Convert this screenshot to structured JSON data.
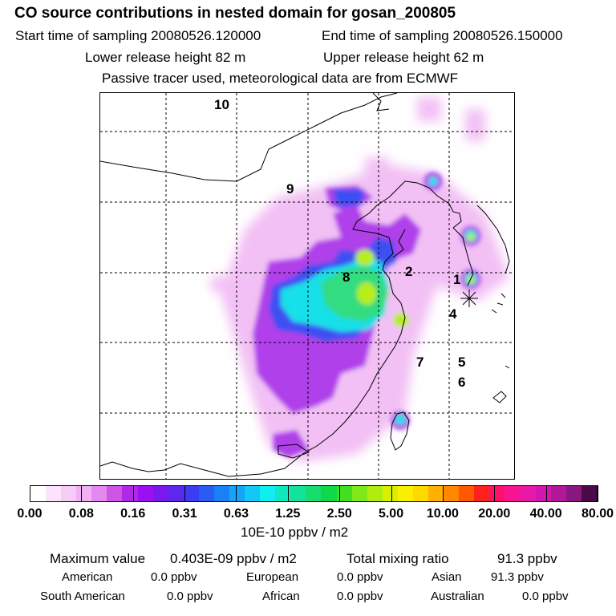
{
  "header": {
    "title": "CO  source contributions in nested domain for gosan_200805",
    "start_time": "Start time of sampling 20080526.120000",
    "end_time": "End time of sampling 20080526.150000",
    "lower_height": "Lower release height   82 m",
    "upper_height": "Upper release height   62 m",
    "note": "Passive tracer used, meteorological data are from ECMWF"
  },
  "map": {
    "region_labels": [
      "10",
      "9",
      "8",
      "2",
      "1",
      "4",
      "7",
      "5",
      "6"
    ],
    "receptor_marker": "asterisk"
  },
  "colorbar": {
    "colors": [
      "#ffffff",
      "#fbe4fb",
      "#f7cbf7",
      "#f0b0f2",
      "#e48aee",
      "#cc55e8",
      "#b128e6",
      "#9b10f0",
      "#7a18f0",
      "#5c28f0",
      "#3c3cf2",
      "#2a5cf4",
      "#1a80f6",
      "#14a4f8",
      "#12c8f6",
      "#10eef0",
      "#10e8c0",
      "#12e29a",
      "#18dc70",
      "#10d848",
      "#40e020",
      "#80e818",
      "#b0ec10",
      "#d8f000",
      "#f8f000",
      "#ffd800",
      "#ffb000",
      "#ff8800",
      "#ff5800",
      "#ff2020",
      "#ff106a",
      "#f81490",
      "#e818a8",
      "#d018b0",
      "#b01898",
      "#8a1680",
      "#4a0a48"
    ],
    "tick_labels": [
      "0.00",
      "0.08",
      "0.16",
      "0.31",
      "0.63",
      "1.25",
      "2.50",
      "5.00",
      "10.00",
      "20.00",
      "40.00",
      "80.00"
    ],
    "units": "10E-10 ppbv / m2"
  },
  "stats": {
    "max_label": "Maximum value",
    "max_value": "0.403E-09 ppbv / m2",
    "total_label": "Total mixing ratio",
    "total_value": "91.3 ppbv",
    "american_label": "American",
    "american_value": "0.0 ppbv",
    "european_label": "European",
    "european_value": "0.0 ppbv",
    "asian_label": "Asian",
    "asian_value": "91.3 ppbv",
    "south_american_label": "South American",
    "south_american_value": "0.0 ppbv",
    "african_label": "African",
    "african_value": "0.0 ppbv",
    "australian_label": "Australian",
    "australian_value": "0.0 ppbv"
  }
}
